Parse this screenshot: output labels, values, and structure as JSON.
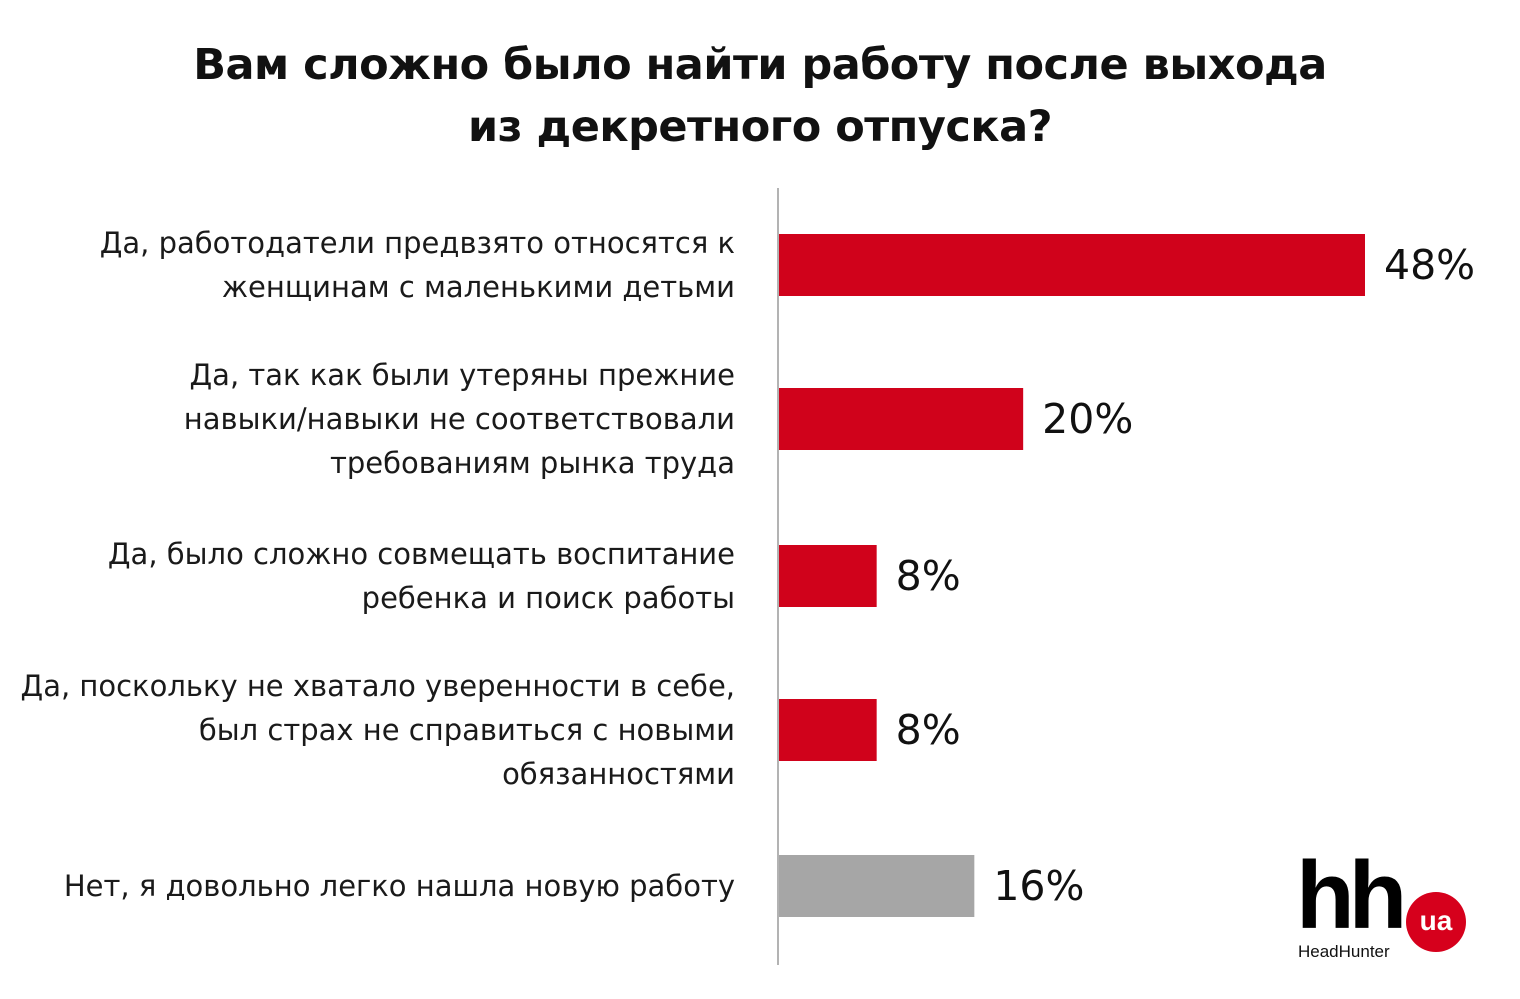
{
  "chart_data": {
    "type": "bar",
    "orientation": "horizontal",
    "title": "Вам сложно было найти работу после выхода из декретного отпуска?",
    "title_lines": [
      "Вам сложно было найти работу после выхода",
      "из декретного отпуска?"
    ],
    "categories": [
      [
        "Да, работодатели предвзято относятся к",
        "женщинам с маленькими детьми"
      ],
      [
        "Да, так как были утеряны прежние",
        "навыки/навыки не соответствовали",
        "требованиям рынка труда"
      ],
      [
        "Да, было сложно совмещать воспитание",
        "ребенка и поиск работы"
      ],
      [
        "Да, поскольку не хватало уверенности в себе,",
        "был страх не справиться с новыми",
        "обязанностями"
      ],
      [
        "Нет, я довольно легко нашла новую работу"
      ]
    ],
    "values": [
      48,
      20,
      8,
      8,
      16
    ],
    "value_labels": [
      "48%",
      "20%",
      "8%",
      "8%",
      "16%"
    ],
    "bar_colors": [
      "#d0021b",
      "#d0021b",
      "#d0021b",
      "#d0021b",
      "#a6a6a6"
    ],
    "xlim": [
      0,
      48
    ],
    "grid": false,
    "legend": "none"
  },
  "logo": {
    "mark": "hh",
    "badge": "ua",
    "subtitle": "HeadHunter",
    "badge_color": "#d6001c"
  }
}
